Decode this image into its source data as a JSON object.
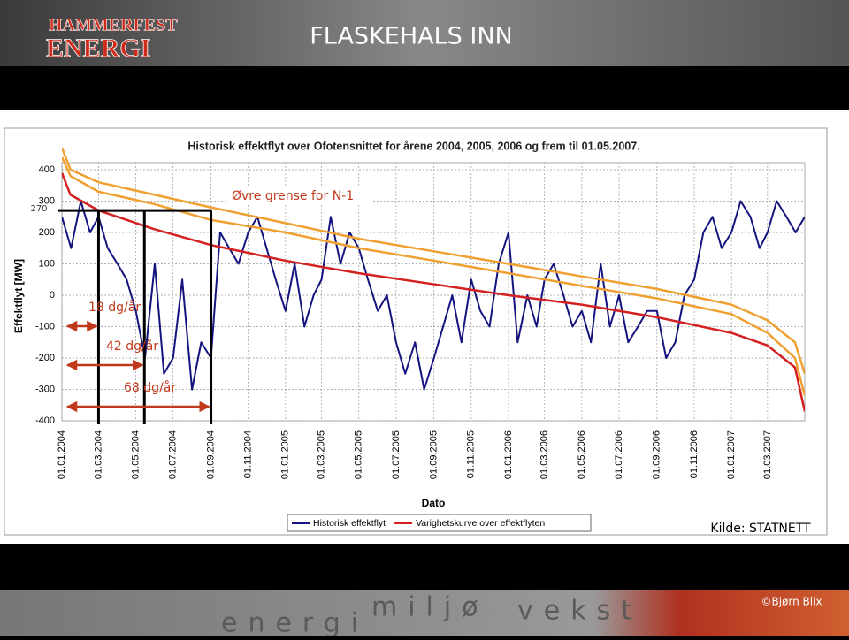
{
  "header": {
    "logo_top": "HAMMERFEST",
    "logo_bottom": "ENERGI",
    "title": "FLASKEHALS INN"
  },
  "footer": {
    "words": [
      "energi",
      "miljø",
      "vekst"
    ],
    "credit": "©Bjørn Blix"
  },
  "chart_data": {
    "type": "line",
    "title": "Historisk effektflyt over Ofotensnittet for årene 2004, 2005, 2006 og frem til 01.05.2007.",
    "xlabel": "Dato",
    "ylabel": "Effektflyt [MW]",
    "source": "Kilde: STATNETT",
    "xlim": [
      "01.01.2004",
      "01.05.2007"
    ],
    "ylim": [
      -400,
      400
    ],
    "yticks": [
      -400,
      -300,
      -200,
      -100,
      0,
      100,
      200,
      300,
      400
    ],
    "xticks": [
      "01.01.2004",
      "01.03.2004",
      "01.05.2004",
      "01.07.2004",
      "01.09.2004",
      "01.11.2004",
      "01.01.2005",
      "01.03.2005",
      "01.05.2005",
      "01.07.2005",
      "01.09.2005",
      "01.11.2005",
      "01.01.2006",
      "01.03.2006",
      "01.05.2006",
      "01.07.2006",
      "01.09.2006",
      "01.11.2006",
      "01.01.2007",
      "01.03.2007"
    ],
    "grid": true,
    "x": [
      "01.01.2004",
      "16.01.2004",
      "01.02.2004",
      "16.02.2004",
      "01.03.2004",
      "16.03.2004",
      "01.04.2004",
      "16.04.2004",
      "01.05.2004",
      "16.05.2004",
      "01.06.2004",
      "16.06.2004",
      "01.07.2004",
      "16.07.2004",
      "01.08.2004",
      "16.08.2004",
      "01.09.2004",
      "16.09.2004",
      "01.10.2004",
      "16.10.2004",
      "01.11.2004",
      "16.11.2004",
      "01.12.2004",
      "16.12.2004",
      "01.01.2005",
      "16.01.2005",
      "01.02.2005",
      "16.02.2005",
      "01.03.2005",
      "16.03.2005",
      "01.04.2005",
      "16.04.2005",
      "01.05.2005",
      "16.05.2005",
      "01.06.2005",
      "16.06.2005",
      "01.07.2005",
      "16.07.2005",
      "01.08.2005",
      "16.08.2005",
      "01.09.2005",
      "16.09.2005",
      "01.10.2005",
      "16.10.2005",
      "01.11.2005",
      "16.11.2005",
      "01.12.2005",
      "16.12.2005",
      "01.01.2006",
      "16.01.2006",
      "01.02.2006",
      "16.02.2006",
      "01.03.2006",
      "16.03.2006",
      "01.04.2006",
      "16.04.2006",
      "01.05.2006",
      "16.05.2006",
      "01.06.2006",
      "16.06.2006",
      "01.07.2006",
      "16.07.2006",
      "01.08.2006",
      "16.08.2006",
      "01.09.2006",
      "16.09.2006",
      "01.10.2006",
      "16.10.2006",
      "01.11.2006",
      "16.11.2006",
      "01.12.2006",
      "16.12.2006",
      "01.01.2007",
      "16.01.2007",
      "01.02.2007",
      "16.02.2007",
      "01.03.2007",
      "16.03.2007",
      "01.04.2007",
      "16.04.2007",
      "01.05.2007"
    ],
    "series": [
      {
        "name": "Historisk effektflyt",
        "color": "#14147f",
        "values": [
          250,
          150,
          300,
          200,
          250,
          150,
          100,
          50,
          -50,
          -200,
          100,
          -250,
          -200,
          50,
          -300,
          -150,
          -200,
          200,
          150,
          100,
          200,
          250,
          150,
          50,
          -50,
          100,
          -100,
          0,
          50,
          250,
          100,
          200,
          150,
          50,
          -50,
          0,
          -150,
          -250,
          -150,
          -300,
          -200,
          -100,
          0,
          -150,
          50,
          -50,
          -100,
          100,
          200,
          -150,
          0,
          -100,
          50,
          100,
          0,
          -100,
          -50,
          -150,
          100,
          -100,
          0,
          -150,
          -100,
          -50,
          -50,
          -200,
          -150,
          0,
          50,
          200,
          250,
          150,
          200,
          300,
          250,
          150,
          200,
          300,
          250,
          200,
          250
        ]
      },
      {
        "name": "Varighetskurve over effektflyten",
        "color": "#d42020",
        "x": [
          "01.01.2004",
          "15.01.2004",
          "01.03.2004",
          "01.06.2004",
          "01.09.2004",
          "01.01.2005",
          "01.05.2005",
          "01.09.2005",
          "01.01.2006",
          "01.05.2006",
          "01.09.2006",
          "01.01.2007",
          "01.03.2007",
          "15.04.2007",
          "01.05.2007"
        ],
        "values": [
          390,
          320,
          270,
          210,
          160,
          110,
          70,
          35,
          0,
          -30,
          -70,
          -120,
          -160,
          -230,
          -370
        ]
      },
      {
        "color": "#f0a030",
        "x": [
          "01.01.2004",
          "15.01.2004",
          "01.03.2004",
          "01.06.2004",
          "01.09.2004",
          "01.01.2005",
          "01.05.2005",
          "01.09.2005",
          "01.01.2006",
          "01.05.2006",
          "01.09.2006",
          "01.01.2007",
          "01.03.2007",
          "15.04.2007",
          "01.05.2007"
        ],
        "values": [
          470,
          400,
          360,
          320,
          280,
          230,
          180,
          140,
          100,
          60,
          20,
          -30,
          -80,
          -150,
          -250
        ]
      },
      {
        "color": "#f0a030",
        "x": [
          "01.01.2004",
          "15.01.2004",
          "01.03.2004",
          "01.06.2004",
          "01.09.2004",
          "01.01.2005",
          "01.05.2005",
          "01.09.2005",
          "01.01.2006",
          "01.05.2006",
          "01.09.2006",
          "01.01.2007",
          "01.03.2007",
          "15.04.2007",
          "01.05.2007"
        ],
        "values": [
          440,
          380,
          330,
          290,
          240,
          200,
          150,
          110,
          70,
          30,
          -10,
          -60,
          -120,
          -200,
          -320
        ]
      }
    ],
    "limit_label": "Øvre grense for N-1",
    "threshold": 270,
    "annotations": [
      {
        "label": "18 dg/år",
        "x": "01.03.2004"
      },
      {
        "label": "42 dg/år",
        "x": "15.05.2004"
      },
      {
        "label": "68 dg/år",
        "x": "01.09.2004"
      }
    ]
  }
}
